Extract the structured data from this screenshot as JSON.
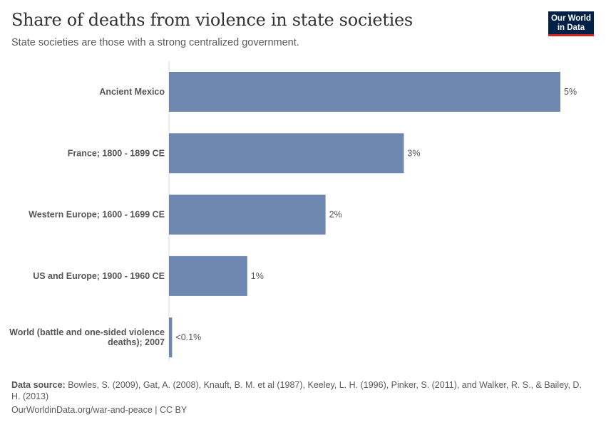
{
  "header": {
    "title": "Share of deaths from violence in state societies",
    "subtitle": "State societies are those with a strong centralized government.",
    "logo": "Our World in Data"
  },
  "chart_data": {
    "type": "bar",
    "orientation": "horizontal",
    "categories": [
      "Ancient Mexico",
      "France; 1800 - 1899 CE",
      "Western Europe; 1600 - 1699 CE",
      "US and Europe; 1900 - 1960 CE",
      "World (battle and one-sided violence deaths); 2007"
    ],
    "values": [
      5,
      3,
      2,
      1,
      0.04
    ],
    "value_labels": [
      "5%",
      "3%",
      "2%",
      "1%",
      "<0.1%"
    ],
    "unit": "%",
    "xlim": [
      0,
      5
    ],
    "grid": false,
    "bar_color": "#6d87b0"
  },
  "footer": {
    "source_label": "Data source:",
    "source_text": "Bowles, S. (2009), Gat, A. (2008), Knauft, B. M. et al (1987), Keeley, L. H. (1996), Pinker, S. (2011), and Walker, R. S., & Bailey, D. H. (2013)",
    "url": "OurWorldinData.org/war-and-peace | CC BY"
  }
}
